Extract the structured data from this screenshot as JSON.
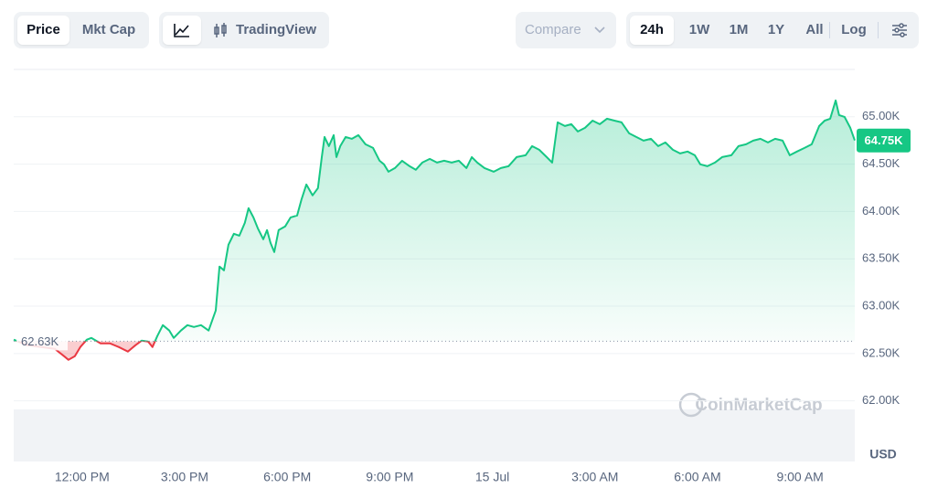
{
  "toolbar": {
    "price": "Price",
    "mkt_cap": "Mkt Cap",
    "trading_view": "TradingView",
    "compare": "Compare",
    "ranges": [
      "24h",
      "1W",
      "1M",
      "1Y",
      "All"
    ],
    "log": "Log"
  },
  "chart_data": {
    "type": "line",
    "x": [
      10.0,
      10.4,
      10.8,
      11.2,
      11.47,
      11.6,
      11.79,
      11.95,
      12.14,
      12.27,
      12.54,
      12.81,
      13.07,
      13.34,
      13.56,
      13.74,
      13.93,
      14.06,
      14.2,
      14.36,
      14.55,
      14.68,
      14.89,
      15.08,
      15.27,
      15.48,
      15.7,
      15.91,
      16.02,
      16.15,
      16.28,
      16.44,
      16.6,
      16.76,
      16.87,
      17.01,
      17.14,
      17.3,
      17.41,
      17.51,
      17.62,
      17.75,
      17.94,
      18.1,
      18.29,
      18.42,
      18.56,
      18.74,
      18.9,
      19.01,
      19.09,
      19.22,
      19.36,
      19.44,
      19.55,
      19.71,
      19.89,
      20.08,
      20.29,
      20.51,
      20.7,
      20.83,
      20.96,
      21.15,
      21.36,
      21.58,
      21.76,
      21.95,
      22.17,
      22.38,
      22.59,
      22.81,
      23.02,
      23.24,
      23.4,
      23.56,
      23.77,
      24.04,
      24.25,
      24.47,
      24.71,
      24.97,
      25.16,
      25.37,
      25.59,
      25.75,
      25.91,
      26.12,
      26.31,
      26.5,
      26.71,
      26.93,
      27.14,
      27.35,
      27.57,
      27.78,
      28.0,
      28.21,
      28.42,
      28.64,
      28.85,
      29.06,
      29.28,
      29.49,
      29.71,
      29.92,
      30.08,
      30.29,
      30.51,
      30.72,
      30.99,
      31.2,
      31.42,
      31.63,
      31.84,
      32.06,
      32.27,
      32.49,
      32.7,
      32.91,
      33.13,
      33.34,
      33.56,
      33.72,
      33.88,
      34.04,
      34.14,
      34.3,
      34.47,
      34.6
    ],
    "series": [
      {
        "name": "Price",
        "color": "#16c784",
        "down_color": "#ea3943",
        "values": [
          62646,
          62588,
          62569,
          62550,
          62473,
          62434,
          62473,
          62569,
          62646,
          62665,
          62608,
          62608,
          62569,
          62521,
          62588,
          62636,
          62627,
          62569,
          62685,
          62800,
          62743,
          62665,
          62743,
          62800,
          62781,
          62800,
          62743,
          62955,
          63418,
          63379,
          63649,
          63765,
          63745,
          63880,
          64035,
          63938,
          63823,
          63707,
          63803,
          63668,
          63572,
          63803,
          63842,
          63938,
          63958,
          64131,
          64285,
          64170,
          64247,
          64575,
          64787,
          64690,
          64806,
          64575,
          64690,
          64787,
          64768,
          64806,
          64710,
          64671,
          64536,
          64498,
          64420,
          64459,
          64536,
          64478,
          64440,
          64517,
          64555,
          64517,
          64536,
          64517,
          64536,
          64459,
          64575,
          64517,
          64459,
          64420,
          64459,
          64478,
          64575,
          64594,
          64690,
          64652,
          64575,
          64517,
          64941,
          64903,
          64922,
          64845,
          64883,
          64960,
          64922,
          64980,
          64960,
          64941,
          64825,
          64787,
          64748,
          64768,
          64690,
          64729,
          64652,
          64613,
          64633,
          64594,
          64498,
          64478,
          64517,
          64575,
          64594,
          64690,
          64710,
          64748,
          64768,
          64729,
          64768,
          64748,
          64594,
          64633,
          64671,
          64710,
          64903,
          64960,
          64980,
          65173,
          65018,
          64999,
          64883,
          64750
        ]
      }
    ],
    "xlim": [
      10,
      34.6
    ],
    "xticks": [
      {
        "value": 12,
        "label": "12:00 PM"
      },
      {
        "value": 15,
        "label": "3:00 PM"
      },
      {
        "value": 18,
        "label": "6:00 PM"
      },
      {
        "value": 21,
        "label": "9:00 PM"
      },
      {
        "value": 24,
        "label": "15 Jul"
      },
      {
        "value": 27,
        "label": "3:00 AM"
      },
      {
        "value": 30,
        "label": "6:00 AM"
      },
      {
        "value": 33,
        "label": "9:00 AM"
      }
    ],
    "ylim": [
      61360,
      65500
    ],
    "yticks": [
      {
        "value": 62000,
        "label": "62.00K"
      },
      {
        "value": 62500,
        "label": "62.50K"
      },
      {
        "value": 63000,
        "label": "63.00K"
      },
      {
        "value": 63500,
        "label": "63.50K"
      },
      {
        "value": 64000,
        "label": "64.00K"
      },
      {
        "value": 64500,
        "label": "64.50K"
      },
      {
        "value": 65000,
        "label": "65.00K"
      }
    ],
    "baseline": {
      "value": 62630,
      "label": "62.63K"
    },
    "current": {
      "value": 64750,
      "label": "64.75K"
    },
    "currency": "USD",
    "watermark": "CoinMarketCap",
    "grid": true
  }
}
